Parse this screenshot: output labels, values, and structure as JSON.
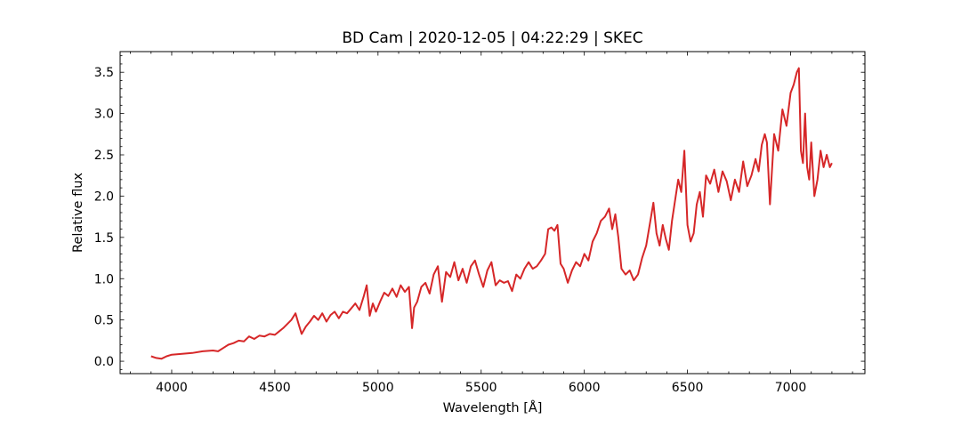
{
  "chart_data": {
    "type": "line",
    "title": "BD Cam | 2020-12-05 | 04:22:29 | SKEC",
    "xlabel": "Wavelength [Å]",
    "ylabel": "Relative flux",
    "xlim": [
      3750,
      7360
    ],
    "ylim": [
      -0.15,
      3.75
    ],
    "xticks": [
      4000,
      4500,
      5000,
      5500,
      6000,
      6500,
      7000
    ],
    "yticks": [
      0.0,
      0.5,
      1.0,
      1.5,
      2.0,
      2.5,
      3.0,
      3.5
    ],
    "xtick_labels": [
      "4000",
      "4500",
      "5000",
      "5500",
      "6000",
      "6500",
      "7000"
    ],
    "ytick_labels": [
      "0.0",
      "0.5",
      "1.0",
      "1.5",
      "2.0",
      "2.5",
      "3.0",
      "3.5"
    ],
    "grid": false,
    "series": [
      {
        "color": "#d62728",
        "x": [
          3900,
          3925,
          3950,
          3975,
          4000,
          4050,
          4100,
          4150,
          4200,
          4225,
          4250,
          4275,
          4300,
          4325,
          4350,
          4375,
          4400,
          4425,
          4450,
          4475,
          4500,
          4520,
          4540,
          4560,
          4580,
          4600,
          4615,
          4630,
          4650,
          4670,
          4690,
          4710,
          4730,
          4750,
          4770,
          4790,
          4810,
          4830,
          4850,
          4870,
          4890,
          4910,
          4930,
          4945,
          4960,
          4975,
          4990,
          5010,
          5030,
          5050,
          5070,
          5090,
          5110,
          5130,
          5150,
          5165,
          5175,
          5190,
          5210,
          5230,
          5250,
          5270,
          5290,
          5310,
          5330,
          5350,
          5370,
          5390,
          5410,
          5430,
          5450,
          5470,
          5490,
          5510,
          5530,
          5550,
          5570,
          5590,
          5610,
          5630,
          5650,
          5670,
          5690,
          5710,
          5730,
          5750,
          5770,
          5790,
          5810,
          5825,
          5840,
          5855,
          5870,
          5885,
          5900,
          5920,
          5940,
          5960,
          5980,
          6000,
          6020,
          6040,
          6060,
          6080,
          6100,
          6120,
          6135,
          6150,
          6165,
          6180,
          6200,
          6220,
          6240,
          6260,
          6280,
          6300,
          6320,
          6335,
          6350,
          6365,
          6380,
          6395,
          6410,
          6425,
          6440,
          6455,
          6470,
          6485,
          6500,
          6515,
          6530,
          6545,
          6560,
          6575,
          6590,
          6610,
          6630,
          6650,
          6670,
          6690,
          6710,
          6730,
          6750,
          6770,
          6790,
          6810,
          6830,
          6845,
          6860,
          6875,
          6885,
          6900,
          6920,
          6940,
          6960,
          6980,
          7000,
          7015,
          7030,
          7040,
          7050,
          7060,
          7070,
          7080,
          7090,
          7100,
          7115,
          7130,
          7145,
          7160,
          7175,
          7190,
          7200
        ],
        "y": [
          0.06,
          0.04,
          0.03,
          0.06,
          0.08,
          0.09,
          0.1,
          0.12,
          0.13,
          0.12,
          0.16,
          0.2,
          0.22,
          0.25,
          0.24,
          0.3,
          0.27,
          0.31,
          0.3,
          0.33,
          0.32,
          0.36,
          0.4,
          0.45,
          0.5,
          0.58,
          0.45,
          0.33,
          0.42,
          0.48,
          0.55,
          0.5,
          0.58,
          0.48,
          0.56,
          0.6,
          0.52,
          0.6,
          0.58,
          0.64,
          0.7,
          0.62,
          0.78,
          0.92,
          0.55,
          0.7,
          0.6,
          0.72,
          0.83,
          0.79,
          0.88,
          0.78,
          0.92,
          0.84,
          0.9,
          0.4,
          0.65,
          0.72,
          0.9,
          0.95,
          0.82,
          1.05,
          1.15,
          0.72,
          1.08,
          1.02,
          1.2,
          0.98,
          1.12,
          0.95,
          1.15,
          1.22,
          1.05,
          0.9,
          1.1,
          1.2,
          0.92,
          0.98,
          0.95,
          0.97,
          0.85,
          1.05,
          1.0,
          1.12,
          1.2,
          1.12,
          1.15,
          1.22,
          1.3,
          1.6,
          1.62,
          1.58,
          1.65,
          1.18,
          1.12,
          0.95,
          1.1,
          1.2,
          1.15,
          1.3,
          1.22,
          1.45,
          1.55,
          1.7,
          1.75,
          1.85,
          1.6,
          1.78,
          1.5,
          1.12,
          1.05,
          1.1,
          0.98,
          1.05,
          1.25,
          1.4,
          1.7,
          1.92,
          1.55,
          1.4,
          1.65,
          1.48,
          1.35,
          1.7,
          1.95,
          2.2,
          2.05,
          2.55,
          1.65,
          1.45,
          1.55,
          1.9,
          2.05,
          1.75,
          2.25,
          2.15,
          2.32,
          2.05,
          2.3,
          2.18,
          1.95,
          2.2,
          2.05,
          2.42,
          2.12,
          2.25,
          2.45,
          2.3,
          2.62,
          2.75,
          2.65,
          1.9,
          2.75,
          2.55,
          3.05,
          2.85,
          3.25,
          3.35,
          3.5,
          3.55,
          2.55,
          2.4,
          3.0,
          2.35,
          2.2,
          2.65,
          2.0,
          2.2,
          2.55,
          2.35,
          2.5,
          2.35,
          2.4
        ]
      }
    ]
  }
}
